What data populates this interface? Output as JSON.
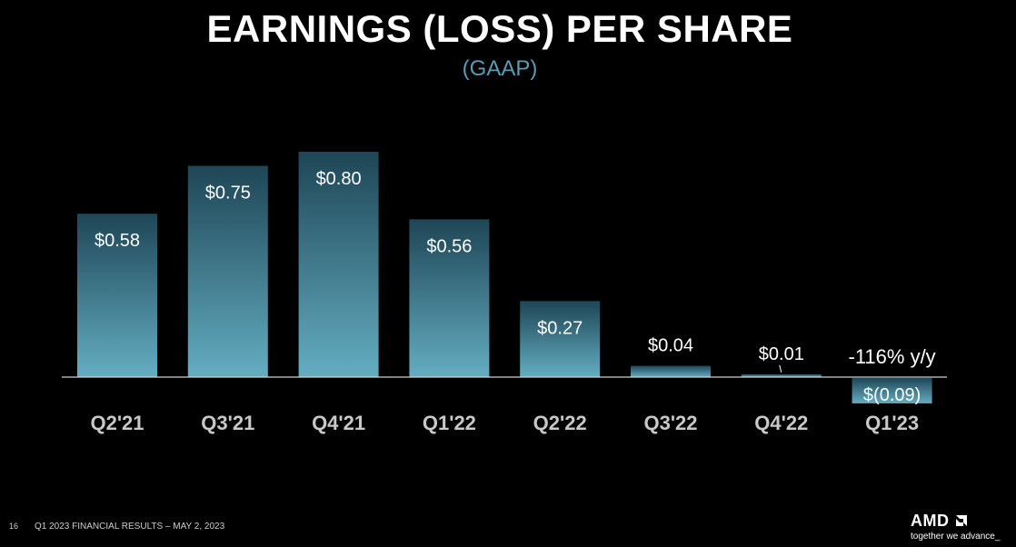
{
  "footer": {
    "page_number": "16",
    "text": "Q1 2023 FINANCIAL RESULTS – MAY 2, 2023"
  },
  "logo": {
    "wordmark": "AMD",
    "tagline": "together we advance_"
  },
  "chart_data": {
    "type": "bar",
    "title": "EARNINGS (LOSS) PER SHARE",
    "subtitle": "(GAAP)",
    "categories": [
      "Q2'21",
      "Q3'21",
      "Q4'21",
      "Q1'22",
      "Q2'22",
      "Q3'22",
      "Q4'22",
      "Q1'23"
    ],
    "values": [
      0.58,
      0.75,
      0.8,
      0.56,
      0.27,
      0.04,
      0.01,
      -0.09
    ],
    "data_labels": [
      "$0.58",
      "$0.75",
      "$0.80",
      "$0.56",
      "$0.27",
      "$0.04",
      "$0.01",
      "$(0.09)"
    ],
    "annotation": "-116% y/y",
    "xlabel": "",
    "ylabel": "",
    "grid": false,
    "legend": "none",
    "colors": {
      "bar_top": "#1e4656",
      "bar_bottom": "#64adc1",
      "subtitle": "#5b9bb3",
      "category_label": "#c8c8c8",
      "baseline": "#d0d0d0"
    }
  }
}
